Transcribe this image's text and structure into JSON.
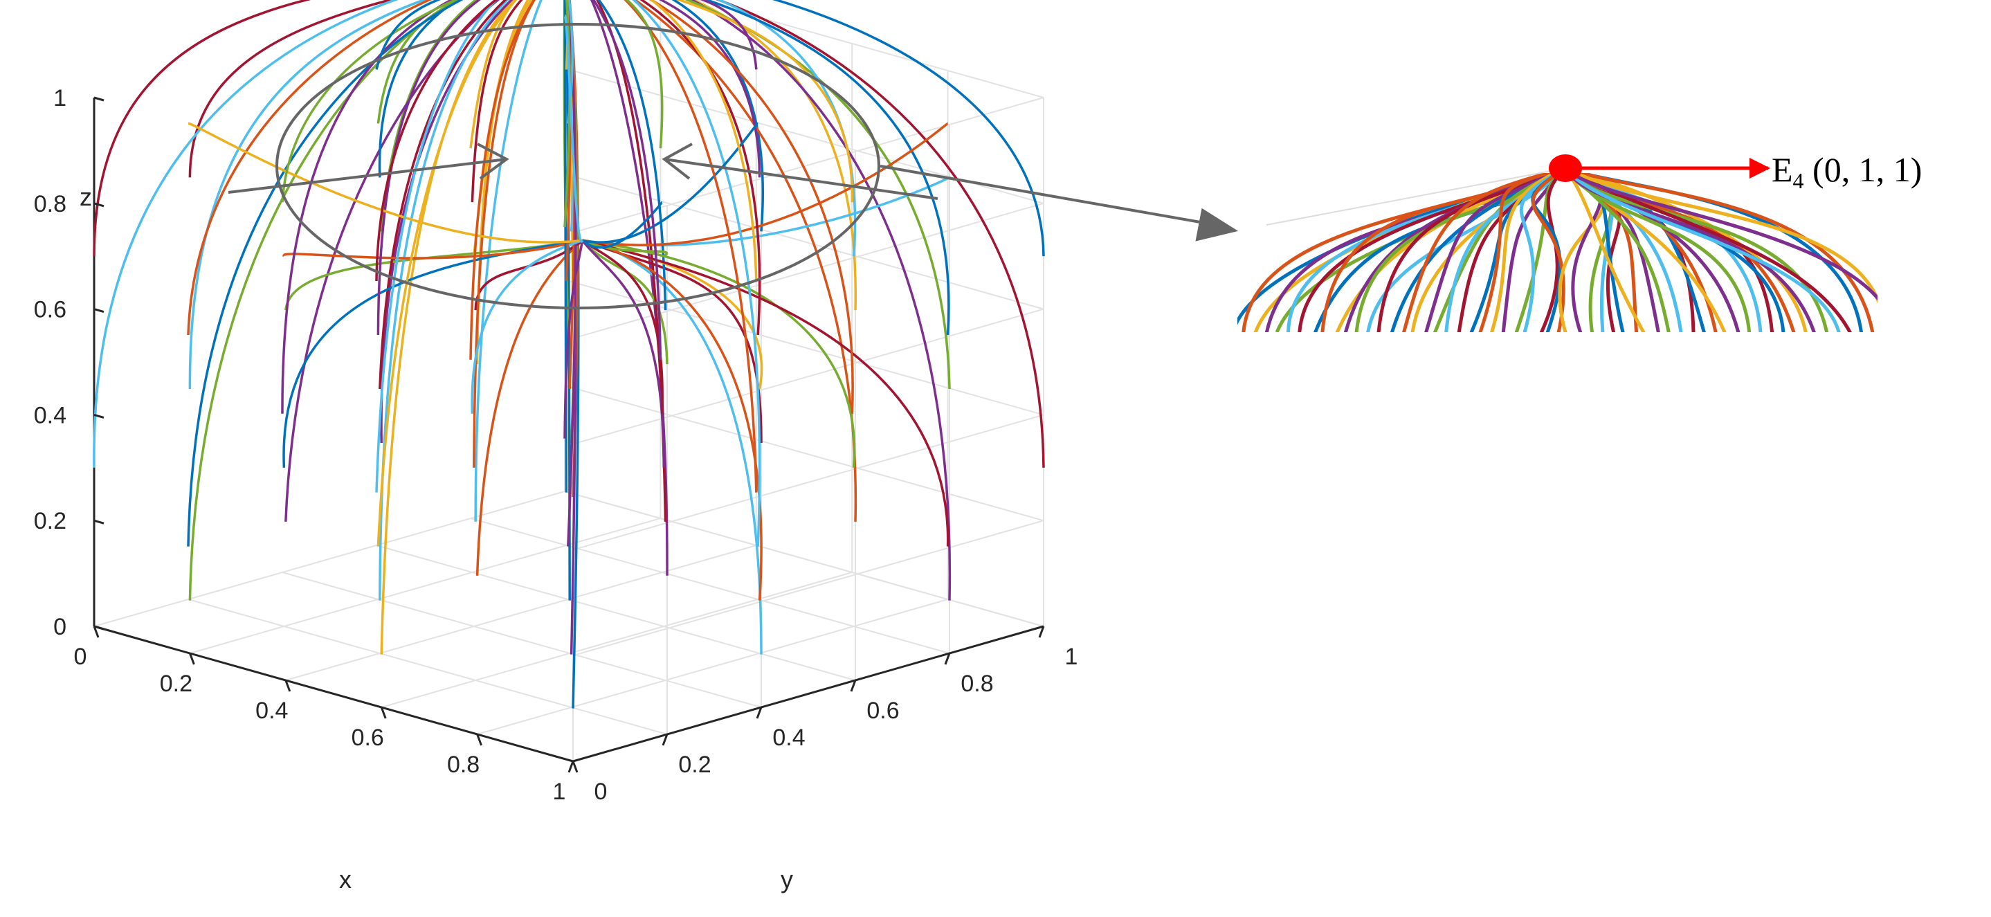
{
  "chart_data": {
    "type": "3d-line",
    "title": "",
    "xlabel": "x",
    "ylabel": "y",
    "zlabel": "z",
    "xlim": [
      0,
      1
    ],
    "ylim": [
      0,
      1
    ],
    "zlim": [
      0,
      1
    ],
    "x_ticks": [
      "0",
      "0.2",
      "0.4",
      "0.6",
      "0.8",
      "1"
    ],
    "y_ticks": [
      "0",
      "0.2",
      "0.4",
      "0.6",
      "0.8",
      "1"
    ],
    "z_ticks": [
      "0",
      "0.2",
      "0.4",
      "0.6",
      "0.8",
      "1"
    ],
    "grid": true,
    "description": "Evolution trajectories from a 6x6 grid of initial (x, y) points at several initial z values; all trajectories converge to the equilibrium point (0, 1, 1).",
    "initial_x": [
      0,
      0.2,
      0.4,
      0.6,
      0.8,
      1
    ],
    "initial_y": [
      0,
      0.2,
      0.4,
      0.6,
      0.8,
      1
    ],
    "initial_z": [
      0.1,
      0.3,
      0.5,
      0.7,
      0.9
    ],
    "convergence_point": [
      0,
      1,
      1
    ],
    "series_colors": [
      "#0072BD",
      "#D95319",
      "#EDB120",
      "#7E2F8E",
      "#77AC30",
      "#4DBEEE",
      "#A2142F"
    ],
    "annotation": {
      "label_main": "E",
      "label_sub": "4",
      "label_coords": " (0, 1, 1)",
      "marker_color": "#ff0000",
      "arrow_color": "#ff0000"
    }
  }
}
